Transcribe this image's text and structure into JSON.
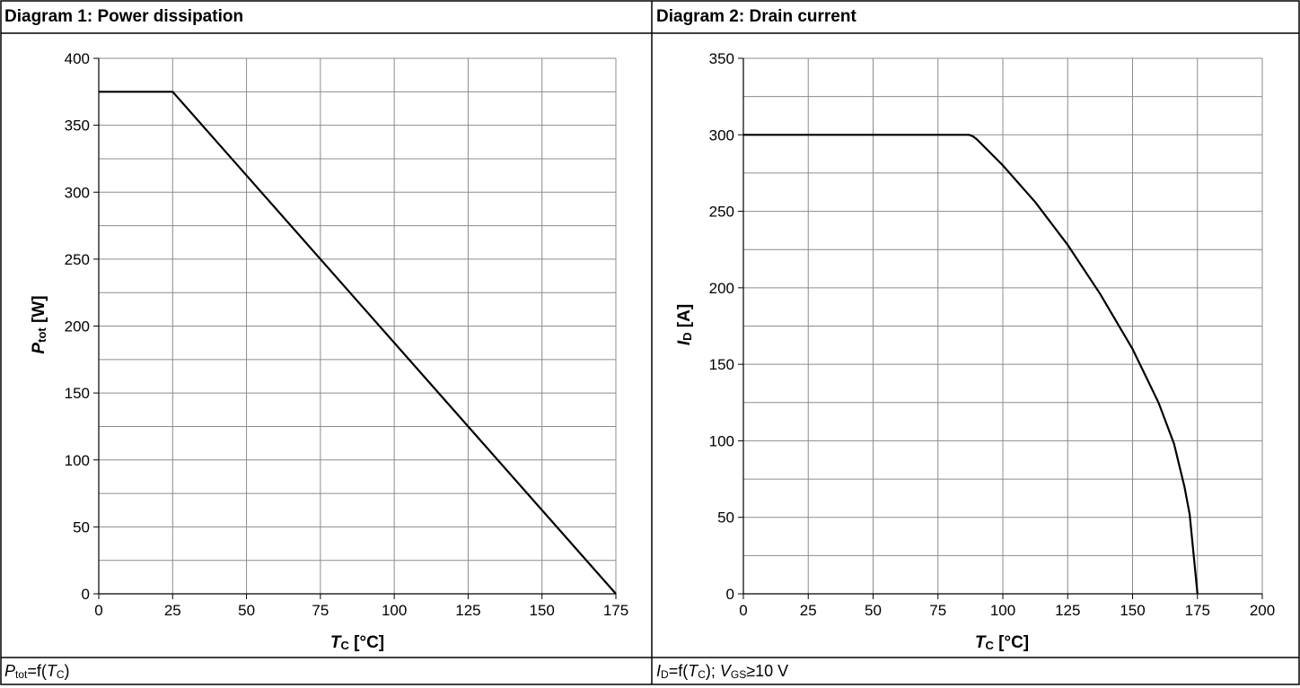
{
  "chart_data": [
    {
      "type": "line",
      "title": "Diagram 1: Power dissipation",
      "xlabel": "TC [°C]",
      "ylabel": "Ptot [W]",
      "xlim": [
        0,
        175
      ],
      "ylim": [
        0,
        400
      ],
      "x_ticks": [
        "0",
        "25",
        "50",
        "75",
        "100",
        "125",
        "150",
        "175"
      ],
      "y_ticks": [
        "0",
        "50",
        "100",
        "150",
        "200",
        "250",
        "300",
        "350",
        "400"
      ],
      "grid": true,
      "series": [
        {
          "x": [
            0,
            25,
            175
          ],
          "y": [
            375,
            375,
            0
          ]
        }
      ],
      "caption": "Ptot=f(TC)"
    },
    {
      "type": "line",
      "title": "Diagram 2: Drain current",
      "xlabel": "TC [°C]",
      "ylabel": "ID [A]",
      "xlim": [
        0,
        200
      ],
      "ylim": [
        0,
        350
      ],
      "x_ticks": [
        "0",
        "25",
        "50",
        "75",
        "100",
        "125",
        "150",
        "175",
        "200"
      ],
      "y_ticks": [
        "0",
        "50",
        "100",
        "150",
        "200",
        "250",
        "300",
        "350"
      ],
      "grid": true,
      "series": [
        {
          "x": [
            0,
            87,
            88.5,
            90,
            100,
            112.5,
            125,
            137.5,
            150,
            160,
            166,
            170,
            172,
            175
          ],
          "y": [
            300,
            300,
            299,
            297,
            280,
            256,
            228,
            196,
            160,
            125,
            98,
            70,
            52,
            0
          ]
        }
      ],
      "caption": "ID=f(TC); VGS≥10 V"
    }
  ],
  "captions": {
    "left_pre": "P",
    "left_sub": "tot",
    "left_mid": "=f(",
    "left_var": "T",
    "left_varsub": "C",
    "left_end": ")",
    "right_pre": "I",
    "right_sub": "D",
    "right_mid": "=f(",
    "right_var": "T",
    "right_varsub": "C",
    "right_sep": "); ",
    "right_v": "V",
    "right_vsub": "GS",
    "right_end": "≥10 V"
  },
  "axis_titles": {
    "left_x_main": "T",
    "left_x_sub": "C",
    "left_x_unit": " [°C]",
    "left_y_main": "P",
    "left_y_sub": "tot",
    "left_y_unit": " [W]",
    "right_x_main": "T",
    "right_x_sub": "C",
    "right_x_unit": " [°C]",
    "right_y_main": "I",
    "right_y_sub": "D",
    "right_y_unit": " [A]"
  },
  "colors": {
    "grid": "#8c8c8c",
    "curve": "#000000",
    "border": "#000000"
  }
}
